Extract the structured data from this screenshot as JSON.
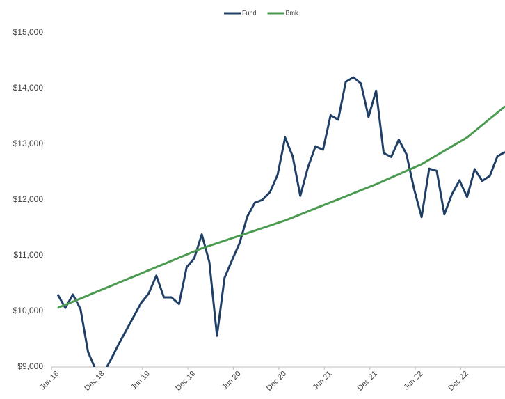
{
  "chart_data": {
    "type": "line",
    "categories": [
      "Jun 18",
      null,
      null,
      null,
      null,
      null,
      "Dec 18",
      null,
      null,
      null,
      null,
      null,
      "Jun 19",
      null,
      null,
      null,
      null,
      null,
      "Dec 19",
      null,
      null,
      null,
      null,
      null,
      "Jun 20",
      null,
      null,
      null,
      null,
      null,
      "Dec 20",
      null,
      null,
      null,
      null,
      null,
      "Jun 21",
      null,
      null,
      null,
      null,
      null,
      "Dec 21",
      null,
      null,
      null,
      null,
      null,
      "Jun 22",
      null,
      null,
      null,
      null,
      null,
      "Dec 22",
      null,
      null,
      null,
      null,
      null
    ],
    "series": [
      {
        "name": "Fund",
        "color": "#1f3f66",
        "values": [
          10300,
          10060,
          10300,
          10040,
          9270,
          8950,
          8880,
          9130,
          9400,
          9650,
          9900,
          10150,
          10320,
          10640,
          10250,
          10250,
          10130,
          10790,
          10950,
          11380,
          10880,
          9560,
          10600,
          10920,
          11230,
          11700,
          11950,
          12000,
          12140,
          12450,
          13120,
          12780,
          12070,
          12580,
          12960,
          12900,
          13520,
          13440,
          14120,
          14200,
          14090,
          13490,
          13960,
          12840,
          12770,
          13080,
          12820,
          12200,
          11690,
          12560,
          12520,
          11740,
          12100,
          12350,
          12050,
          12550,
          12340,
          12430,
          12780,
          12860
        ]
      },
      {
        "name": "Bmk",
        "color": "#4a9a4f",
        "values": [
          10060,
          10116,
          10173,
          10229,
          10285,
          10342,
          10398,
          10454,
          10511,
          10567,
          10623,
          10679,
          10736,
          10792,
          10848,
          10905,
          10961,
          11017,
          11074,
          11130,
          11175,
          11221,
          11266,
          11312,
          11357,
          11403,
          11448,
          11494,
          11539,
          11585,
          11630,
          11684,
          11738,
          11793,
          11847,
          11901,
          11955,
          12009,
          12063,
          12118,
          12172,
          12226,
          12280,
          12340,
          12400,
          12460,
          12520,
          12580,
          12640,
          12720,
          12800,
          12880,
          12960,
          13040,
          13120,
          13232,
          13344,
          13456,
          13568,
          13680
        ]
      }
    ],
    "ylim": [
      9000,
      15000
    ],
    "yticks": [
      {
        "value": 9000,
        "label": "$9,000"
      },
      {
        "value": 10000,
        "label": "$10,000"
      },
      {
        "value": 11000,
        "label": "$11,000"
      },
      {
        "value": 12000,
        "label": "$12,000"
      },
      {
        "value": 13000,
        "label": "$13,000"
      },
      {
        "value": 14000,
        "label": "$14,000"
      },
      {
        "value": 15000,
        "label": "$15,000"
      }
    ],
    "legend": "top"
  }
}
